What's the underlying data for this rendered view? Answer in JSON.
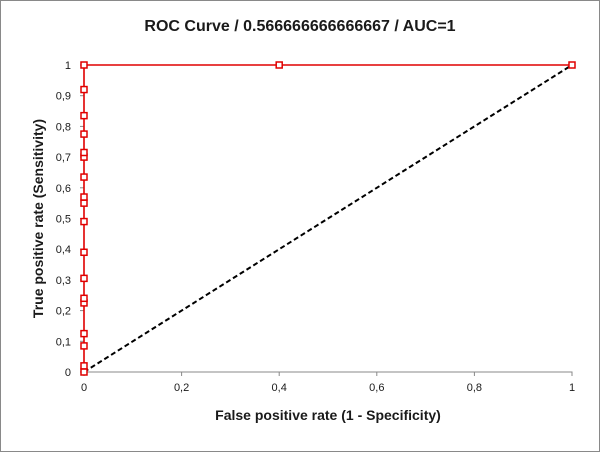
{
  "chart_data": {
    "type": "line",
    "title": "ROC Curve / 0.566666666666667 / AUC=1",
    "xlabel": "False positive rate (1 - Specificity)",
    "ylabel": "True positive rate (Sensitivity)",
    "xlim": [
      0,
      1
    ],
    "ylim": [
      0,
      1
    ],
    "x_ticks": [
      0,
      0.2,
      0.4,
      0.6,
      0.8,
      1
    ],
    "x_tick_labels": [
      "0",
      "0,2",
      "0,4",
      "0,6",
      "0,8",
      "1"
    ],
    "y_ticks": [
      0,
      0.1,
      0.2,
      0.3,
      0.4,
      0.5,
      0.6,
      0.7,
      0.8,
      0.9,
      1
    ],
    "y_tick_labels": [
      "0",
      "0,1",
      "0,2",
      "0,3",
      "0,4",
      "0,5",
      "0,6",
      "0,7",
      "0,8",
      "0,9",
      "1"
    ],
    "grid": false,
    "series": [
      {
        "color": "#e00000",
        "marker": "square",
        "points": [
          {
            "x": 0,
            "y": 0
          },
          {
            "x": 0,
            "y": 0.02
          },
          {
            "x": 0,
            "y": 0.085
          },
          {
            "x": 0,
            "y": 0.125
          },
          {
            "x": 0,
            "y": 0.225
          },
          {
            "x": 0,
            "y": 0.24
          },
          {
            "x": 0,
            "y": 0.305
          },
          {
            "x": 0,
            "y": 0.39
          },
          {
            "x": 0,
            "y": 0.49
          },
          {
            "x": 0,
            "y": 0.55
          },
          {
            "x": 0,
            "y": 0.57
          },
          {
            "x": 0,
            "y": 0.635
          },
          {
            "x": 0,
            "y": 0.7
          },
          {
            "x": 0,
            "y": 0.715
          },
          {
            "x": 0,
            "y": 0.775
          },
          {
            "x": 0,
            "y": 0.835
          },
          {
            "x": 0,
            "y": 0.92
          },
          {
            "x": 0,
            "y": 1
          },
          {
            "x": 0.4,
            "y": 1
          },
          {
            "x": 1,
            "y": 1
          }
        ]
      },
      {
        "color": "#000000",
        "line_style": "dashed",
        "points": [
          {
            "x": 0,
            "y": 0
          },
          {
            "x": 1,
            "y": 1
          }
        ]
      }
    ]
  }
}
